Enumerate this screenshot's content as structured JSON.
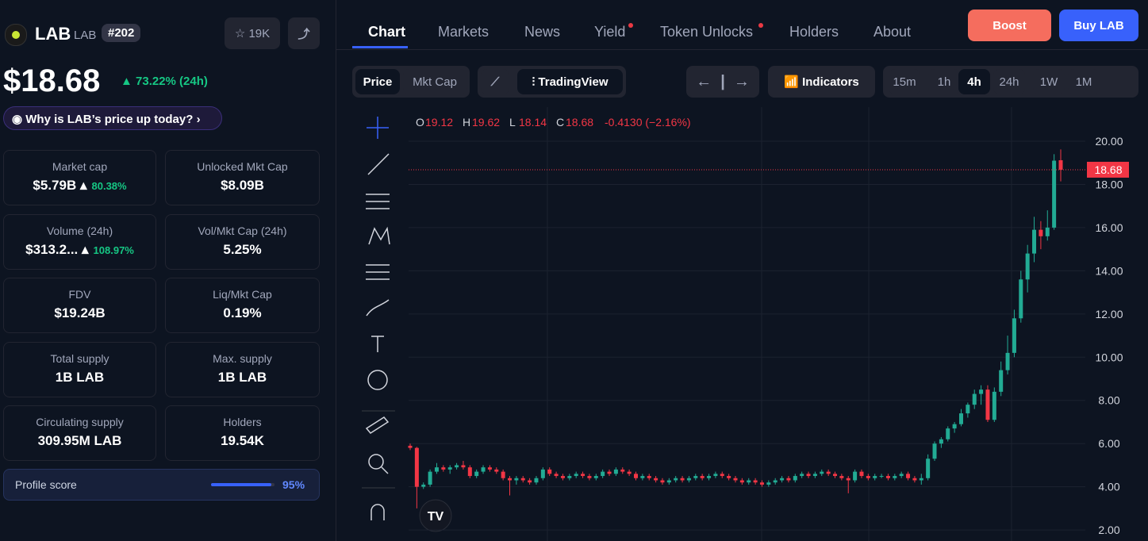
{
  "token": {
    "name": "LAB",
    "symbol": "LAB",
    "rank": "#202",
    "watchlist": "19K",
    "price": "$18.68",
    "change": "73.22% (24h)",
    "why": "Why is LAB’s price up today?"
  },
  "stats": [
    {
      "label": "Market cap",
      "value": "$5.79B",
      "change": "80.38%"
    },
    {
      "label": "Unlocked Mkt Cap",
      "value": "$8.09B"
    },
    {
      "label": "Volume (24h)",
      "value": "$313.2...",
      "change": "108.97%"
    },
    {
      "label": "Vol/Mkt Cap (24h)",
      "value": "5.25%"
    },
    {
      "label": "FDV",
      "value": "$19.24B"
    },
    {
      "label": "Liq/Mkt Cap",
      "value": "0.19%"
    },
    {
      "label": "Total supply",
      "value": "1B LAB"
    },
    {
      "label": "Max. supply",
      "value": "1B LAB"
    },
    {
      "label": "Circulating supply",
      "value": "309.95M LAB"
    },
    {
      "label": "Holders",
      "value": "19.54K"
    }
  ],
  "profile": {
    "label": "Profile score",
    "score": 95,
    "score_label": "95%"
  },
  "tabs": [
    "Chart",
    "Markets",
    "News",
    "Yield",
    "Token Unlocks",
    "Holders",
    "About"
  ],
  "buttons": {
    "boost": "Boost",
    "buy": "Buy LAB"
  },
  "toolbar": {
    "modes": [
      "Price",
      "Mkt Cap"
    ],
    "tradingview": "TradingView",
    "indicators": "Indicators",
    "intervals": [
      "15m",
      "1h",
      "4h",
      "24h",
      "1W",
      "1M"
    ]
  },
  "chart_data": {
    "type": "candlestick",
    "up_color": "#22ab94",
    "down_color": "#f23645",
    "legend": [
      {
        "key": "O",
        "value": "19.12"
      },
      {
        "key": "H",
        "value": "19.62"
      },
      {
        "key": "L",
        "value": "18.14"
      },
      {
        "key": "C",
        "value": "18.68"
      }
    ],
    "legend_change": "-0.4130 (−2.16%)",
    "last_price": 18.68,
    "ylim": [
      1.49,
      21.58
    ],
    "yticks": [
      {
        "value": 2,
        "label": "2.00"
      },
      {
        "value": 4,
        "label": "4.00"
      },
      {
        "value": 6,
        "label": "6.00"
      },
      {
        "value": 8,
        "label": "8.00"
      },
      {
        "value": 10,
        "label": "10.00"
      },
      {
        "value": 12,
        "label": "12.00"
      },
      {
        "value": 14,
        "label": "14.00"
      },
      {
        "value": 16,
        "label": "16.00"
      },
      {
        "value": 18,
        "label": "18.00"
      },
      {
        "value": 20,
        "label": "20.00"
      }
    ],
    "candles": [
      [
        5.9,
        6.0,
        5.7,
        5.8
      ],
      [
        5.8,
        5.85,
        3.0,
        4.0
      ],
      [
        4.0,
        4.2,
        3.9,
        4.1
      ],
      [
        4.1,
        4.8,
        4.0,
        4.7
      ],
      [
        4.7,
        5.1,
        4.6,
        4.9
      ],
      [
        4.9,
        5.0,
        4.7,
        4.8
      ],
      [
        4.8,
        5.0,
        4.6,
        4.9
      ],
      [
        4.9,
        5.1,
        4.8,
        5.0
      ],
      [
        5.0,
        5.2,
        4.8,
        4.9
      ],
      [
        4.9,
        5.0,
        4.4,
        4.5
      ],
      [
        4.5,
        4.8,
        4.4,
        4.7
      ],
      [
        4.7,
        5.0,
        4.6,
        4.9
      ],
      [
        4.9,
        5.0,
        4.7,
        4.8
      ],
      [
        4.8,
        4.9,
        4.6,
        4.7
      ],
      [
        4.7,
        4.8,
        4.3,
        4.4
      ],
      [
        4.4,
        4.5,
        3.6,
        4.3
      ],
      [
        4.3,
        4.5,
        4.1,
        4.4
      ],
      [
        4.4,
        4.5,
        4.2,
        4.3
      ],
      [
        4.3,
        4.4,
        4.1,
        4.2
      ],
      [
        4.2,
        4.5,
        4.1,
        4.4
      ],
      [
        4.4,
        4.9,
        4.3,
        4.8
      ],
      [
        4.8,
        4.9,
        4.5,
        4.6
      ],
      [
        4.6,
        4.7,
        4.4,
        4.5
      ],
      [
        4.5,
        4.6,
        4.3,
        4.4
      ],
      [
        4.4,
        4.6,
        4.3,
        4.5
      ],
      [
        4.5,
        4.7,
        4.4,
        4.6
      ],
      [
        4.6,
        4.7,
        4.4,
        4.5
      ],
      [
        4.5,
        4.6,
        4.3,
        4.4
      ],
      [
        4.4,
        4.6,
        4.3,
        4.5
      ],
      [
        4.5,
        4.8,
        4.4,
        4.7
      ],
      [
        4.7,
        4.8,
        4.5,
        4.6
      ],
      [
        4.6,
        4.9,
        4.5,
        4.8
      ],
      [
        4.8,
        4.9,
        4.6,
        4.7
      ],
      [
        4.7,
        4.8,
        4.5,
        4.6
      ],
      [
        4.6,
        4.7,
        4.3,
        4.4
      ],
      [
        4.4,
        4.6,
        4.3,
        4.5
      ],
      [
        4.5,
        4.6,
        4.3,
        4.4
      ],
      [
        4.4,
        4.5,
        4.2,
        4.3
      ],
      [
        4.3,
        4.4,
        4.1,
        4.2
      ],
      [
        4.2,
        4.4,
        4.1,
        4.3
      ],
      [
        4.3,
        4.5,
        4.2,
        4.4
      ],
      [
        4.4,
        4.5,
        4.2,
        4.3
      ],
      [
        4.3,
        4.5,
        4.2,
        4.4
      ],
      [
        4.4,
        4.6,
        4.3,
        4.5
      ],
      [
        4.5,
        4.6,
        4.3,
        4.4
      ],
      [
        4.4,
        4.6,
        4.3,
        4.5
      ],
      [
        4.5,
        4.7,
        4.4,
        4.6
      ],
      [
        4.6,
        4.7,
        4.4,
        4.5
      ],
      [
        4.5,
        4.6,
        4.3,
        4.4
      ],
      [
        4.4,
        4.5,
        4.2,
        4.3
      ],
      [
        4.3,
        4.4,
        4.1,
        4.2
      ],
      [
        4.2,
        4.4,
        4.1,
        4.3
      ],
      [
        4.3,
        4.4,
        4.1,
        4.2
      ],
      [
        4.2,
        4.3,
        4.0,
        4.1
      ],
      [
        4.1,
        4.3,
        4.0,
        4.2
      ],
      [
        4.2,
        4.4,
        4.1,
        4.3
      ],
      [
        4.3,
        4.5,
        4.2,
        4.4
      ],
      [
        4.4,
        4.5,
        4.2,
        4.3
      ],
      [
        4.3,
        4.6,
        4.2,
        4.5
      ],
      [
        4.5,
        4.7,
        4.4,
        4.6
      ],
      [
        4.6,
        4.7,
        4.4,
        4.5
      ],
      [
        4.5,
        4.7,
        4.4,
        4.6
      ],
      [
        4.6,
        4.8,
        4.5,
        4.7
      ],
      [
        4.7,
        4.8,
        4.5,
        4.6
      ],
      [
        4.6,
        4.7,
        4.4,
        4.5
      ],
      [
        4.5,
        4.6,
        4.3,
        4.4
      ],
      [
        4.4,
        4.5,
        3.7,
        4.3
      ],
      [
        4.3,
        4.8,
        4.2,
        4.7
      ],
      [
        4.7,
        4.8,
        4.4,
        4.5
      ],
      [
        4.5,
        4.6,
        4.3,
        4.4
      ],
      [
        4.4,
        4.6,
        4.3,
        4.5
      ],
      [
        4.5,
        4.6,
        4.4,
        4.5
      ],
      [
        4.5,
        4.6,
        4.3,
        4.4
      ],
      [
        4.4,
        4.6,
        4.3,
        4.5
      ],
      [
        4.5,
        4.7,
        4.4,
        4.6
      ],
      [
        4.6,
        4.7,
        4.3,
        4.4
      ],
      [
        4.4,
        4.5,
        4.2,
        4.3
      ],
      [
        4.3,
        4.6,
        4.1,
        4.4
      ],
      [
        4.4,
        5.5,
        4.3,
        5.3
      ],
      [
        5.3,
        6.1,
        5.2,
        6.0
      ],
      [
        6.0,
        6.3,
        5.8,
        6.2
      ],
      [
        6.2,
        6.8,
        6.1,
        6.7
      ],
      [
        6.7,
        7.0,
        6.5,
        6.9
      ],
      [
        6.9,
        7.6,
        6.8,
        7.4
      ],
      [
        7.4,
        7.9,
        7.2,
        7.8
      ],
      [
        7.8,
        8.5,
        7.6,
        8.3
      ],
      [
        8.3,
        8.7,
        7.8,
        8.5
      ],
      [
        8.5,
        8.7,
        7.0,
        7.1
      ],
      [
        7.1,
        8.6,
        7.0,
        8.4
      ],
      [
        8.4,
        9.8,
        8.2,
        9.4
      ],
      [
        9.4,
        11.0,
        9.2,
        10.2
      ],
      [
        10.2,
        12.2,
        10.0,
        11.8
      ],
      [
        11.8,
        14.0,
        11.6,
        13.6
      ],
      [
        13.6,
        15.2,
        13.0,
        14.8
      ],
      [
        14.8,
        16.5,
        14.4,
        15.9
      ],
      [
        15.9,
        16.3,
        15.0,
        15.6
      ],
      [
        15.6,
        16.8,
        15.4,
        16.0
      ],
      [
        16.0,
        19.4,
        15.9,
        19.1
      ],
      [
        19.12,
        19.62,
        18.14,
        18.68
      ]
    ]
  }
}
